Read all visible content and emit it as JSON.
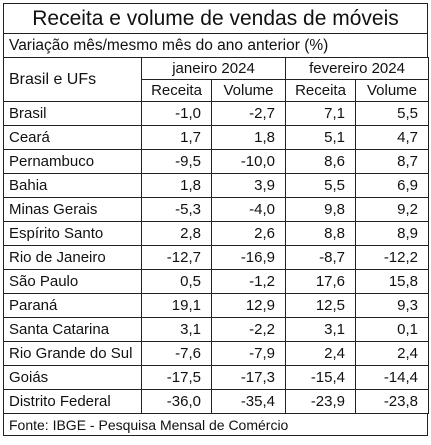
{
  "title": "Receita  e volume de vendas de móveis",
  "subtitle": "Variação mês/mesmo mês do ano anterior (%)",
  "header": {
    "region_label": "Brasil e UFs",
    "periods": [
      "janeiro 2024",
      "fevereiro 2024"
    ],
    "metrics": [
      "Receita",
      "Volume",
      "Receita",
      "Volume"
    ]
  },
  "rows": [
    {
      "name": "Brasil",
      "values": [
        "-1,0",
        "-2,7",
        "7,1",
        "5,5"
      ]
    },
    {
      "name": "Ceará",
      "values": [
        "1,7",
        "1,8",
        "5,1",
        "4,7"
      ]
    },
    {
      "name": "Pernambuco",
      "values": [
        "-9,5",
        "-10,0",
        "8,6",
        "8,7"
      ]
    },
    {
      "name": "Bahia",
      "values": [
        "1,8",
        "3,9",
        "5,5",
        "6,9"
      ]
    },
    {
      "name": "Minas Gerais",
      "values": [
        "-5,3",
        "-4,0",
        "9,8",
        "9,2"
      ]
    },
    {
      "name": "Espírito Santo",
      "values": [
        "2,8",
        "2,6",
        "8,8",
        "8,9"
      ]
    },
    {
      "name": "Rio de Janeiro",
      "values": [
        "-12,7",
        "-16,9",
        "-8,7",
        "-12,2"
      ]
    },
    {
      "name": "São Paulo",
      "values": [
        "0,5",
        "-1,2",
        "17,6",
        "15,8"
      ]
    },
    {
      "name": "Paraná",
      "values": [
        "19,1",
        "12,9",
        "12,5",
        "9,3"
      ]
    },
    {
      "name": "Santa Catarina",
      "values": [
        "3,1",
        "-2,2",
        "3,1",
        "0,1"
      ]
    },
    {
      "name": "Rio Grande do Sul",
      "values": [
        "-7,6",
        "-7,9",
        "2,4",
        "2,4"
      ]
    },
    {
      "name": "Goiás",
      "values": [
        "-17,5",
        "-17,3",
        "-15,4",
        "-14,4"
      ]
    },
    {
      "name": "Distrito Federal",
      "values": [
        "-36,0",
        "-35,4",
        "-23,9",
        "-23,8"
      ]
    }
  ],
  "source": "Fonte: IBGE - Pesquisa Mensal de Comércio"
}
